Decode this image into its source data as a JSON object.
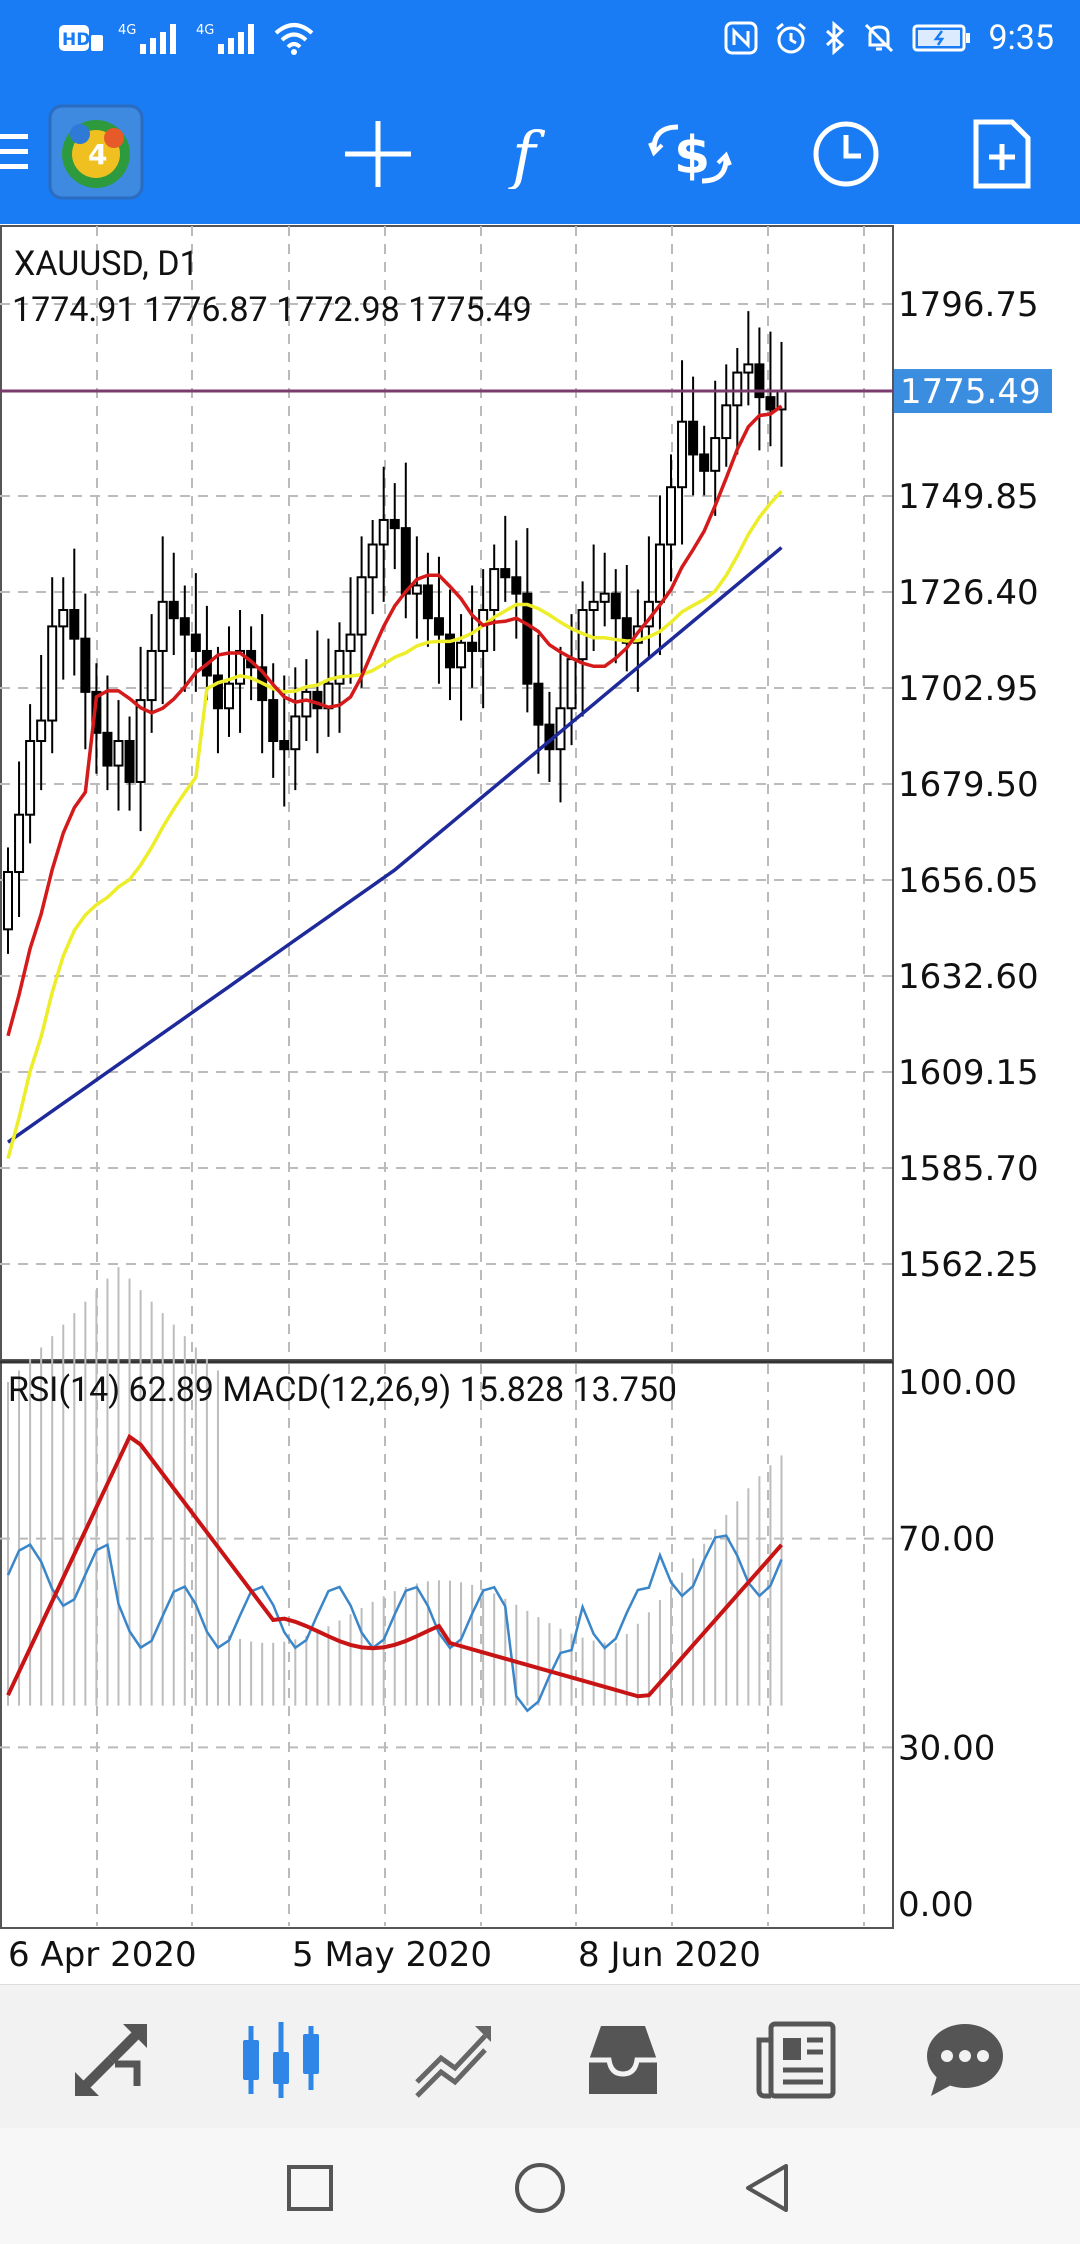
{
  "status_bar": {
    "time": "9:35",
    "left_icons": [
      "hd-icon",
      "signal-4g-icon",
      "signal-4g-icon",
      "wifi-icon"
    ],
    "right_icons": [
      "nfc-icon",
      "alarm-icon",
      "bluetooth-icon",
      "mute-icon",
      "battery-icon"
    ]
  },
  "toolbar": {
    "buttons": [
      "app-logo-icon",
      "crosshair-icon",
      "indicators-icon",
      "trade-icon",
      "timeframe-icon",
      "new-order-icon"
    ]
  },
  "chart": {
    "symbol_label": "XAUUSD, D1",
    "ohlc_label": "1774.91 1776.87 1772.98 1775.49",
    "current_price": "1775.49",
    "price_axis_labels": [
      "1796.75",
      "1749.85",
      "1726.40",
      "1702.95",
      "1679.50",
      "1656.05",
      "1632.60",
      "1609.15",
      "1585.70",
      "1562.25"
    ],
    "price_axis_values": [
      1796.75,
      1749.85,
      1726.4,
      1702.95,
      1679.5,
      1656.05,
      1632.6,
      1609.15,
      1585.7,
      1562.25
    ],
    "indicator_label": "RSI(14) 62.89 MACD(12,26,9) 15.828 13.750",
    "indicator_axis_labels": [
      "100.00",
      "70.00",
      "30.00",
      "0.00"
    ],
    "date_labels": [
      "6 Apr 2020",
      "5 May 2020",
      "8 Jun 2020"
    ],
    "colors": {
      "ma_fast": "#d41a1a",
      "ma_mid": "#eded2a",
      "ma_slow": "#1f2a9a",
      "rsi": "#3a86c8",
      "macd_signal": "#c81414",
      "price_line": "#7a3b6e",
      "price_tag": "#3b8de0"
    }
  },
  "bottom_nav": {
    "items": [
      "quotes-icon",
      "chart-icon",
      "trade-icon",
      "history-icon",
      "news-icon",
      "chat-icon"
    ],
    "active_index": 1
  },
  "system_nav": {
    "items": [
      "recent-apps-icon",
      "home-icon",
      "back-icon"
    ]
  }
}
